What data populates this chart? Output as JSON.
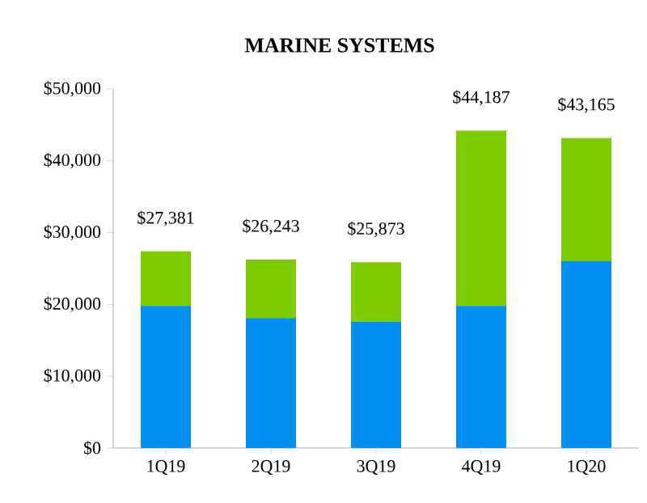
{
  "chart_data": {
    "type": "bar",
    "title": "MARINE SYSTEMS",
    "stacked": true,
    "categories": [
      "1Q19",
      "2Q19",
      "3Q19",
      "4Q19",
      "1Q20"
    ],
    "series": [
      {
        "color": "#0090f0",
        "values": [
          19800,
          18100,
          17600,
          19800,
          26000
        ]
      },
      {
        "color": "#7ccc00",
        "values": [
          7581,
          8143,
          8273,
          24387,
          17165
        ]
      }
    ],
    "totals": [
      "$27,381",
      "$26,243",
      "$25,873",
      "$44,187",
      "$43,165"
    ],
    "ylim": [
      0,
      50000
    ],
    "yticks": [
      {
        "value": 0,
        "label": "$0"
      },
      {
        "value": 10000,
        "label": "$10,000"
      },
      {
        "value": 20000,
        "label": "$20,000"
      },
      {
        "value": 30000,
        "label": "$30,000"
      },
      {
        "value": 40000,
        "label": "$40,000"
      },
      {
        "value": 50000,
        "label": "$50,000"
      }
    ],
    "grid": false
  }
}
